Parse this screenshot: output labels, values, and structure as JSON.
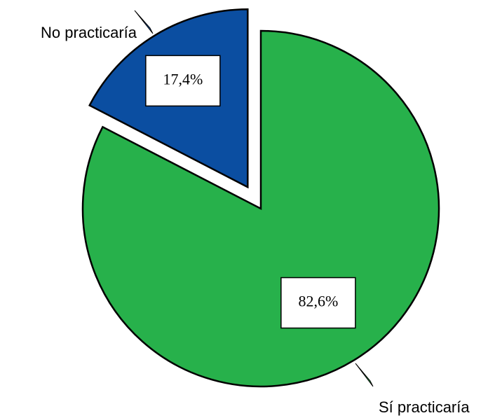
{
  "chart_data": {
    "type": "pie",
    "categories": [
      "Sí practicaría",
      "No practicaría"
    ],
    "values": [
      82.6,
      17.4
    ],
    "value_labels": [
      "82,6%",
      "17,4%"
    ],
    "colors": [
      "#27b14b",
      "#0b4ea1"
    ]
  }
}
